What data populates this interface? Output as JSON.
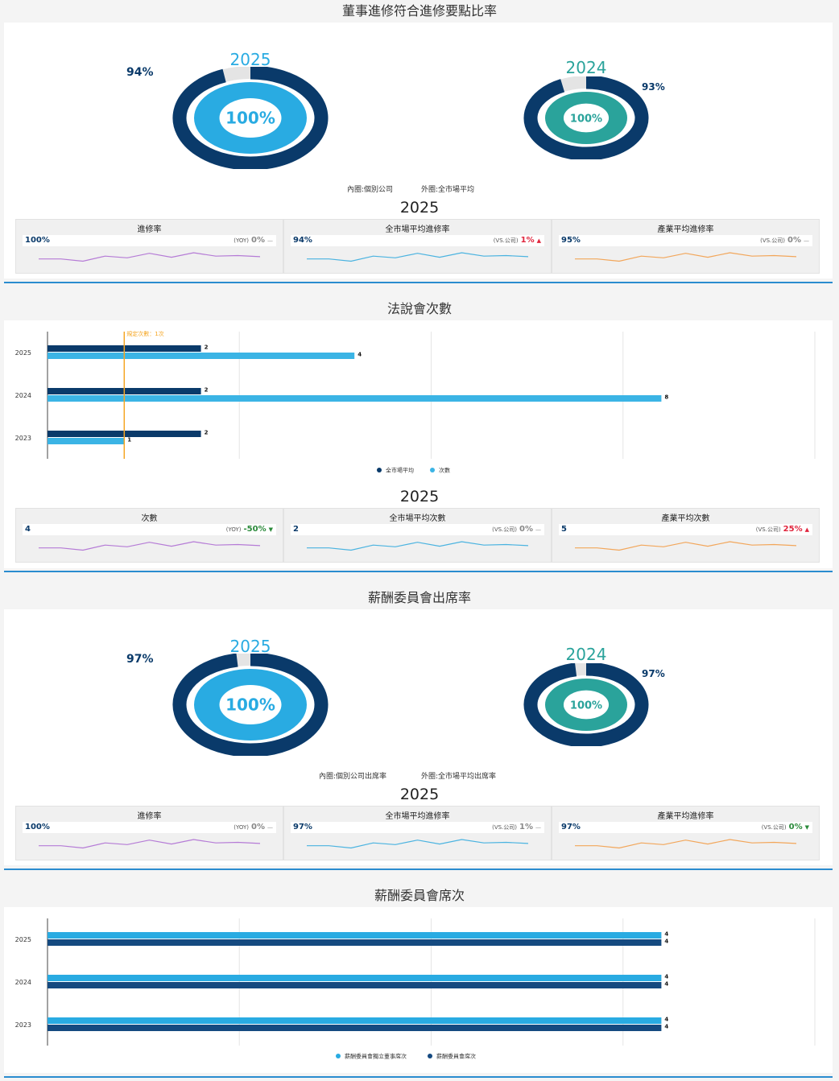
{
  "colors": {
    "navy": "#0a3a6a",
    "sky": "#29abe2",
    "teal": "#2aa39b",
    "red": "#e0243c",
    "green": "#2a8a3a",
    "gray": "#888888",
    "purple": "#b57bd6",
    "blue_line": "#4ab3e0",
    "orange": "#f2a65a",
    "ref_line": "#f5a623"
  },
  "section1": {
    "title": "董事進修符合進修要點比率",
    "donut_left": {
      "year": "2025",
      "inner": "100%",
      "outer": "94%",
      "inner_value": 100,
      "outer_value": 94
    },
    "donut_right": {
      "year": "2024",
      "inner": "100%",
      "outer": "93%",
      "inner_value": 100,
      "outer_value": 93
    },
    "legend_inner": "內圈:個別公司",
    "legend_outer": "外圈:全市場平均",
    "kpi_year": "2025",
    "cards": [
      {
        "title": "進修率",
        "value": "100%",
        "cmp_tag": "(YOY)",
        "cmp_pct": "0%",
        "trend": "flat",
        "spark": "purple"
      },
      {
        "title": "全市場平均進修率",
        "value": "94%",
        "cmp_tag": "(VS.公司)",
        "cmp_pct": "1%",
        "trend": "up",
        "spark": "blue"
      },
      {
        "title": "產業平均進修率",
        "value": "95%",
        "cmp_tag": "(VS.公司)",
        "cmp_pct": "0%",
        "trend": "flat",
        "spark": "orange"
      }
    ]
  },
  "section2": {
    "title": "法說會次數",
    "kpi_year": "2025",
    "cards": [
      {
        "title": "次數",
        "value": "4",
        "cmp_tag": "(YOY)",
        "cmp_pct": "-50%",
        "trend": "down",
        "spark": "purple"
      },
      {
        "title": "全市場平均次數",
        "value": "2",
        "cmp_tag": "(VS.公司)",
        "cmp_pct": "0%",
        "trend": "flat",
        "spark": "blue"
      },
      {
        "title": "產業平均次數",
        "value": "5",
        "cmp_tag": "(VS.公司)",
        "cmp_pct": "25%",
        "trend": "up",
        "spark": "orange"
      }
    ]
  },
  "section3": {
    "title": "薪酬委員會出席率",
    "donut_left": {
      "year": "2025",
      "inner": "100%",
      "outer": "97%",
      "inner_value": 100,
      "outer_value": 97
    },
    "donut_right": {
      "year": "2024",
      "inner": "100%",
      "outer": "97%",
      "inner_value": 100,
      "outer_value": 97
    },
    "legend_inner": "內圈:個別公司出席率",
    "legend_outer": "外圈:全市場平均出席率",
    "kpi_year": "2025",
    "cards": [
      {
        "title": "進修率",
        "value": "100%",
        "cmp_tag": "(YOY)",
        "cmp_pct": "0%",
        "trend": "flat",
        "spark": "purple"
      },
      {
        "title": "全市場平均進修率",
        "value": "97%",
        "cmp_tag": "(VS.公司)",
        "cmp_pct": "1%",
        "trend": "flat",
        "spark": "blue"
      },
      {
        "title": "產業平均進修率",
        "value": "97%",
        "cmp_tag": "(VS.公司)",
        "cmp_pct": "0%",
        "trend": "down",
        "spark": "orange"
      }
    ]
  },
  "section4": {
    "title": "薪酬委員會席次"
  },
  "chart_data": [
    {
      "type": "bar",
      "orientation": "horizontal",
      "title": "法說會次數",
      "categories": [
        "2025",
        "2024",
        "2023"
      ],
      "series": [
        {
          "name": "全市場平均",
          "values": [
            2,
            2,
            2
          ],
          "color": "#0a3a6a"
        },
        {
          "name": "次數",
          "values": [
            4,
            8,
            1
          ],
          "color": "#3bb4e5"
        }
      ],
      "reference_line": {
        "label": "規定次數：1次",
        "value": 1
      },
      "xlim": [
        0,
        10
      ],
      "grid": true,
      "legend": "bottom"
    },
    {
      "type": "bar",
      "orientation": "horizontal",
      "title": "薪酬委員會席次",
      "categories": [
        "2025",
        "2024",
        "2023"
      ],
      "series": [
        {
          "name": "薪酬委員會獨立董事席次",
          "values": [
            4,
            4,
            4
          ],
          "color": "#29abe2"
        },
        {
          "name": "薪酬委員會席次",
          "values": [
            4,
            4,
            4
          ],
          "color": "#154a80"
        }
      ],
      "xlim": [
        0,
        5
      ],
      "grid": true,
      "legend": "bottom"
    }
  ]
}
